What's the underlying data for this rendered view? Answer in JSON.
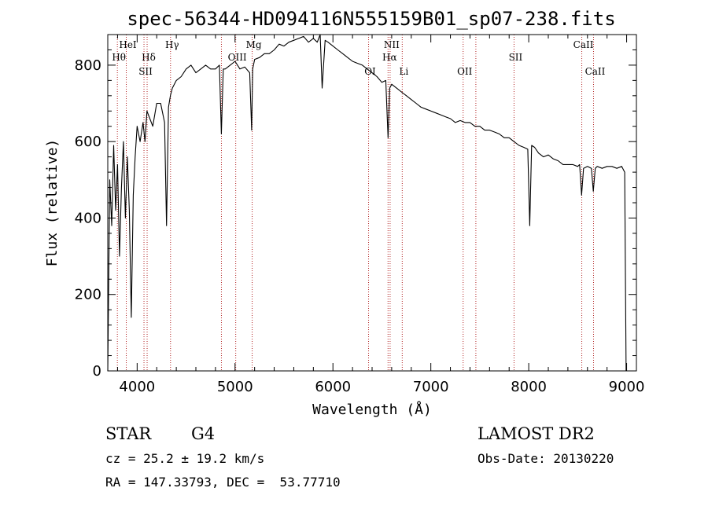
{
  "chart_data": {
    "type": "line",
    "title": "spec-56344-HD094116N555159B01_sp07-238.fits",
    "xlabel": "Wavelength (Å)",
    "ylabel": "Flux (relative)",
    "xlim": [
      3700,
      9100
    ],
    "ylim": [
      0,
      880
    ],
    "xticks": [
      4000,
      5000,
      6000,
      7000,
      8000,
      9000
    ],
    "yticks": [
      0,
      200,
      400,
      600,
      800
    ],
    "grid": false,
    "series": [
      {
        "color": "#000000",
        "x": [
          3700,
          3720,
          3740,
          3760,
          3780,
          3800,
          3820,
          3840,
          3860,
          3880,
          3900,
          3920,
          3940,
          3960,
          3980,
          4000,
          4030,
          4060,
          4080,
          4100,
          4130,
          4160,
          4200,
          4240,
          4280,
          4300,
          4320,
          4340,
          4360,
          4400,
          4450,
          4500,
          4550,
          4600,
          4650,
          4700,
          4750,
          4800,
          4840,
          4860,
          4880,
          4900,
          4950,
          5000,
          5050,
          5100,
          5150,
          5170,
          5180,
          5200,
          5250,
          5300,
          5350,
          5400,
          5450,
          5500,
          5550,
          5600,
          5650,
          5700,
          5750,
          5800,
          5840,
          5870,
          5890,
          5920,
          5950,
          6000,
          6050,
          6100,
          6150,
          6200,
          6250,
          6300,
          6350,
          6400,
          6450,
          6500,
          6540,
          6563,
          6580,
          6600,
          6650,
          6700,
          6750,
          6800,
          6850,
          6900,
          6950,
          7000,
          7050,
          7100,
          7150,
          7200,
          7250,
          7300,
          7350,
          7400,
          7450,
          7500,
          7550,
          7600,
          7650,
          7700,
          7750,
          7800,
          7850,
          7900,
          7950,
          7990,
          8010,
          8030,
          8060,
          8100,
          8150,
          8200,
          8250,
          8300,
          8350,
          8400,
          8450,
          8500,
          8520,
          8540,
          8560,
          8600,
          8640,
          8660,
          8680,
          8700,
          8750,
          8800,
          8850,
          8900,
          8950,
          8980,
          8995,
          9000
        ],
        "y": [
          0,
          500,
          380,
          590,
          420,
          540,
          300,
          480,
          600,
          400,
          560,
          420,
          140,
          460,
          560,
          640,
          600,
          650,
          600,
          680,
          660,
          640,
          700,
          700,
          650,
          380,
          690,
          720,
          740,
          760,
          770,
          790,
          800,
          780,
          790,
          800,
          790,
          790,
          800,
          620,
          790,
          790,
          800,
          810,
          790,
          795,
          780,
          630,
          790,
          815,
          820,
          830,
          830,
          840,
          855,
          850,
          860,
          865,
          870,
          875,
          860,
          870,
          860,
          880,
          740,
          865,
          860,
          850,
          840,
          830,
          820,
          810,
          805,
          800,
          790,
          780,
          770,
          755,
          760,
          610,
          740,
          750,
          740,
          730,
          720,
          710,
          700,
          690,
          685,
          680,
          675,
          670,
          665,
          660,
          650,
          655,
          650,
          650,
          640,
          640,
          630,
          630,
          625,
          620,
          610,
          610,
          600,
          590,
          585,
          580,
          380,
          590,
          585,
          570,
          560,
          565,
          555,
          550,
          540,
          540,
          540,
          535,
          540,
          460,
          530,
          535,
          530,
          470,
          530,
          535,
          530,
          535,
          535,
          530,
          535,
          520,
          0,
          0
        ]
      }
    ],
    "line_markers": [
      {
        "label": "Hθ",
        "wavelength": 3798,
        "row": 1
      },
      {
        "label": "HeI",
        "wavelength": 3889,
        "row": 0
      },
      {
        "label": "Hδ",
        "wavelength": 4102,
        "row": 1
      },
      {
        "label": "SII",
        "wavelength": 4070,
        "row": 2
      },
      {
        "label": "Hγ",
        "wavelength": 4341,
        "row": 0
      },
      {
        "label": "OIII",
        "wavelength": 5007,
        "row": 1
      },
      {
        "label": "Mg",
        "wavelength": 5175,
        "row": 0
      },
      {
        "label": "",
        "wavelength": 4861,
        "row": 0
      },
      {
        "label": "NII",
        "wavelength": 6584,
        "row": 0
      },
      {
        "label": "Hα",
        "wavelength": 6563,
        "row": 1
      },
      {
        "label": "OI",
        "wavelength": 6364,
        "row": 2
      },
      {
        "label": "Li",
        "wavelength": 6708,
        "row": 2
      },
      {
        "label": "OII",
        "wavelength": 7330,
        "row": 2
      },
      {
        "label": "SII",
        "wavelength": 7850,
        "row": 1
      },
      {
        "label": "CaII",
        "wavelength": 8542,
        "row": 0
      },
      {
        "label": "CaII",
        "wavelength": 8662,
        "row": 2
      },
      {
        "label": "",
        "wavelength": 7460,
        "row": 2
      }
    ]
  },
  "info": {
    "class_label": "STAR",
    "subclass": "G4",
    "survey": "LAMOST DR2",
    "cz": "cz = 25.2 ± 19.2 km/s",
    "obs_date": "Obs-Date: 20130220",
    "coords": "RA = 147.33793, DEC =  53.77710"
  }
}
